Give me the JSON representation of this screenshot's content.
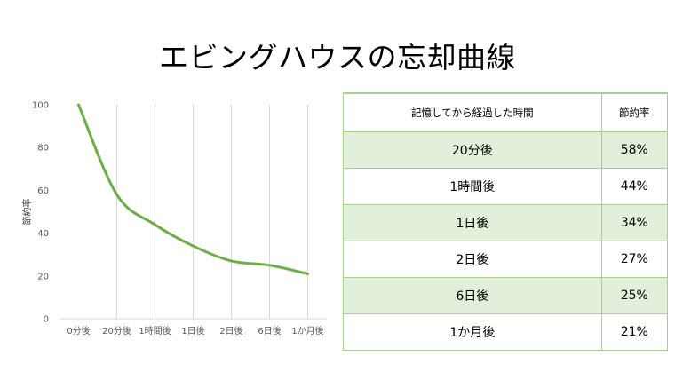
{
  "slide": {
    "title": "エビングハウスの忘却曲線"
  },
  "chart_data": {
    "type": "line",
    "categories": [
      "0分後",
      "20分後",
      "1時間後",
      "1日後",
      "2日後",
      "6日後",
      "1か月後"
    ],
    "values": [
      100,
      58,
      44,
      34,
      27,
      25,
      21
    ],
    "title": "",
    "xlabel": "",
    "ylabel": "節約率",
    "ylim": [
      0,
      100
    ],
    "yticks": [
      0,
      20,
      40,
      60,
      80,
      100
    ],
    "grid": "vertical",
    "line_color": "#70ad47",
    "grid_color": "#d9d9d9"
  },
  "table": {
    "headers": [
      "記憶してから経過した時間",
      "節約率"
    ],
    "rows": [
      [
        "20分後",
        "58%"
      ],
      [
        "1時間後",
        "44%"
      ],
      [
        "1日後",
        "34%"
      ],
      [
        "2日後",
        "27%"
      ],
      [
        "6日後",
        "25%"
      ],
      [
        "1か月後",
        "21%"
      ]
    ],
    "border_color": "#a9d08e",
    "band_color": "#e2efda"
  }
}
